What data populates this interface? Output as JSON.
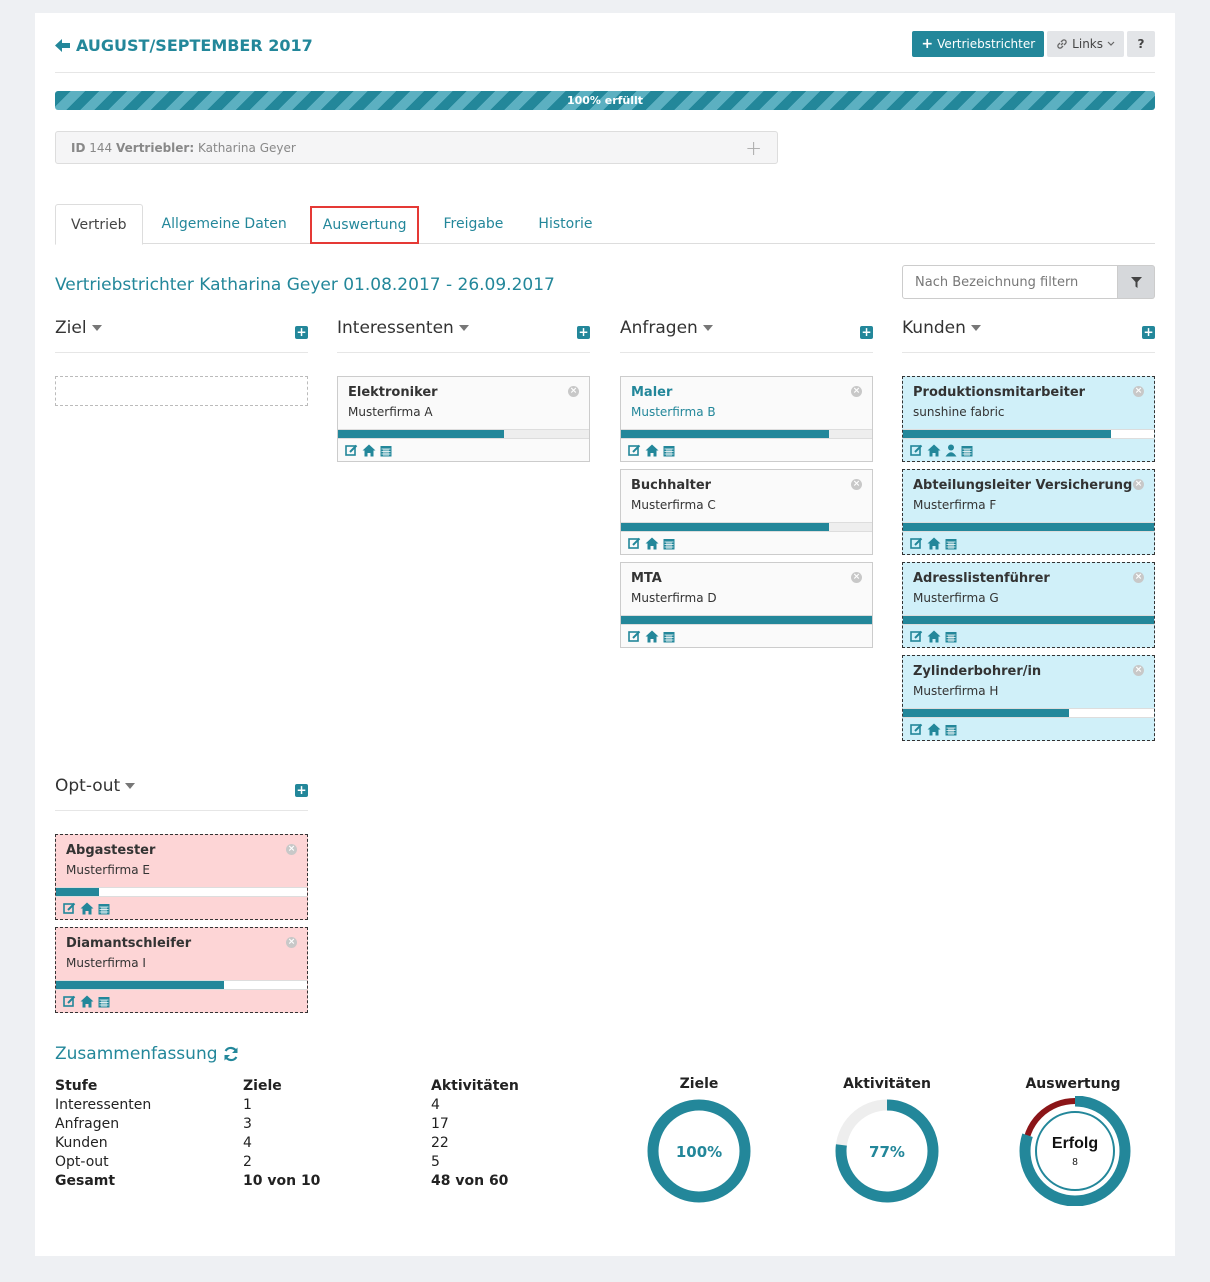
{
  "header": {
    "back_icon": "arrow-left-icon",
    "title": "AUGUST/SEPTEMBER 2017",
    "add_button": "Vertriebstrichter",
    "links_button": "Links",
    "help_button": "?"
  },
  "progress": {
    "label": "100% erfüllt",
    "value": 100
  },
  "id_box": {
    "id_label": "ID",
    "id_value": "144",
    "sales_label": "Vertriebler:",
    "sales_value": "Katharina Geyer"
  },
  "tabs": [
    {
      "label": "Vertrieb",
      "active": true
    },
    {
      "label": "Allgemeine Daten"
    },
    {
      "label": "Auswertung",
      "highlighted": true
    },
    {
      "label": "Freigabe"
    },
    {
      "label": "Historie"
    }
  ],
  "subtitle": "Vertriebstrichter Katharina Geyer 01.08.2017 - 26.09.2017",
  "filter": {
    "placeholder": "Nach Bezeichnung filtern"
  },
  "columns": {
    "ziel": {
      "title": "Ziel",
      "cards": []
    },
    "interessenten": {
      "title": "Interessenten",
      "cards": [
        {
          "name": "Elektroniker",
          "company": "Musterfirma A",
          "progress": 0.66
        }
      ]
    },
    "anfragen": {
      "title": "Anfragen",
      "cards": [
        {
          "name": "Maler",
          "company": "Musterfirma B",
          "progress": 0.83
        },
        {
          "name": "Buchhalter",
          "company": "Musterfirma C",
          "progress": 0.83
        },
        {
          "name": "MTA",
          "company": "Musterfirma D",
          "progress": 1.0
        }
      ]
    },
    "kunden": {
      "title": "Kunden",
      "cards": [
        {
          "name": "Produktionsmitarbeiter",
          "company": "sunshine fabric",
          "progress": 0.83
        },
        {
          "name": "Abteilungsleiter Versicherung",
          "company": "Musterfirma F",
          "progress": 1.0
        },
        {
          "name": "Adresslistenführer",
          "company": "Musterfirma G",
          "progress": 1.0
        },
        {
          "name": "Zylinderbohrer/in",
          "company": "Musterfirma H",
          "progress": 0.66
        }
      ]
    },
    "optout": {
      "title": "Opt-out",
      "cards": [
        {
          "name": "Abgastester",
          "company": "Musterfirma E",
          "progress": 0.17
        },
        {
          "name": "Diamantschleifer",
          "company": "Musterfirma I",
          "progress": 0.67
        }
      ]
    }
  },
  "summary": {
    "title": "Zusammenfassung",
    "headers": [
      "Stufe",
      "Ziele",
      "Aktivitäten"
    ],
    "rows": [
      [
        "Interessenten",
        "1",
        "4"
      ],
      [
        "Anfragen",
        "3",
        "17"
      ],
      [
        "Kunden",
        "4",
        "22"
      ],
      [
        "Opt-out",
        "2",
        "5"
      ]
    ],
    "total": [
      "Gesamt",
      "10 von 10",
      "48 von 60"
    ]
  },
  "donuts": {
    "ziele": {
      "title": "Ziele",
      "label": "100%",
      "value": 1.0
    },
    "aktivitaeten": {
      "title": "Aktivitäten",
      "label": "77%",
      "value": 0.77
    },
    "auswertung": {
      "title": "Auswertung",
      "label": "Erfolg",
      "sub": "8",
      "value": 0.8
    }
  },
  "colors": {
    "accent": "#23879a",
    "customer_bg": "#d0f0f9",
    "optout_bg": "#fdd5d6",
    "danger": "#8b1518"
  }
}
